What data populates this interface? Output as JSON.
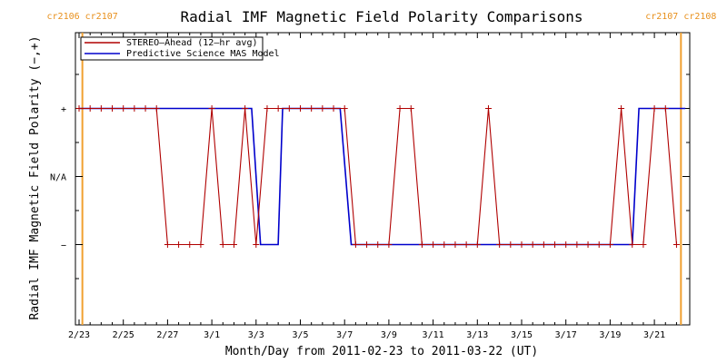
{
  "chart_data": {
    "type": "line",
    "title": "Radial IMF Magnetic Field Polarity Comparisons",
    "xlabel": "Month/Day from 2011-02-23 to 2011-03-22 (UT)",
    "ylabel": "Radial IMF Magnetic Field Polarity (−,+)",
    "x_range_days": [
      0,
      27.4
    ],
    "x_ticks": [
      {
        "label": "2/23",
        "day": 0
      },
      {
        "label": "2/25",
        "day": 2
      },
      {
        "label": "2/27",
        "day": 4
      },
      {
        "label": "3/1",
        "day": 6
      },
      {
        "label": "3/3",
        "day": 8
      },
      {
        "label": "3/5",
        "day": 10
      },
      {
        "label": "3/7",
        "day": 12
      },
      {
        "label": "3/9",
        "day": 14
      },
      {
        "label": "3/11",
        "day": 16
      },
      {
        "label": "3/13",
        "day": 18
      },
      {
        "label": "3/15",
        "day": 20
      },
      {
        "label": "3/17",
        "day": 22
      },
      {
        "label": "3/19",
        "day": 24
      },
      {
        "label": "3/21",
        "day": 26
      }
    ],
    "y_range": [
      -2.0,
      2.0
    ],
    "y_ticks": [
      {
        "label": "+",
        "value": 1
      },
      {
        "label": "N/A",
        "value": 0
      },
      {
        "label": "−",
        "value": -1
      }
    ],
    "carrington_markers": [
      {
        "day": 0.15,
        "left_label": "cr2106",
        "right_label": "cr2107"
      },
      {
        "day": 27.2,
        "left_label": "cr2107",
        "right_label": "cr2108"
      }
    ],
    "legend_position": "top-left",
    "series": [
      {
        "name": "STEREO–Ahead (12–hr avg)",
        "color": "#b00000",
        "markers": true,
        "x": [
          0,
          0.5,
          1,
          1.5,
          2,
          2.5,
          3,
          3.5,
          4,
          4.5,
          5,
          5.5,
          6,
          6.5,
          7,
          7.5,
          8,
          8.5,
          9,
          9.5,
          10,
          10.5,
          11,
          11.5,
          12,
          12.5,
          13,
          13.5,
          14,
          14.5,
          15,
          15.5,
          16,
          16.5,
          17,
          17.5,
          18,
          18.5,
          19,
          19.5,
          20,
          20.5,
          21,
          21.5,
          22,
          22.5,
          23,
          23.5,
          24,
          24.5,
          25,
          25.5,
          26,
          26.5,
          27
        ],
        "y": [
          1,
          1,
          1,
          1,
          1,
          1,
          1,
          1,
          -1,
          -1,
          -1,
          -1,
          1,
          -1,
          -1,
          1,
          -1,
          1,
          1,
          1,
          1,
          1,
          1,
          1,
          1,
          -1,
          -1,
          -1,
          -1,
          1,
          1,
          -1,
          -1,
          -1,
          -1,
          -1,
          -1,
          1,
          -1,
          -1,
          -1,
          -1,
          -1,
          -1,
          -1,
          -1,
          -1,
          -1,
          -1,
          1,
          -1,
          -1,
          1,
          1,
          -1
        ]
      },
      {
        "name": "Predictive Science MAS Model",
        "color": "#0000cc",
        "markers": false,
        "x": [
          0,
          7.8,
          8.2,
          9.0,
          9.2,
          11.8,
          12.3,
          25.0,
          25.3,
          27.4
        ],
        "y": [
          1,
          1,
          -1,
          -1,
          1,
          1,
          -1,
          -1,
          1,
          1
        ]
      }
    ]
  }
}
